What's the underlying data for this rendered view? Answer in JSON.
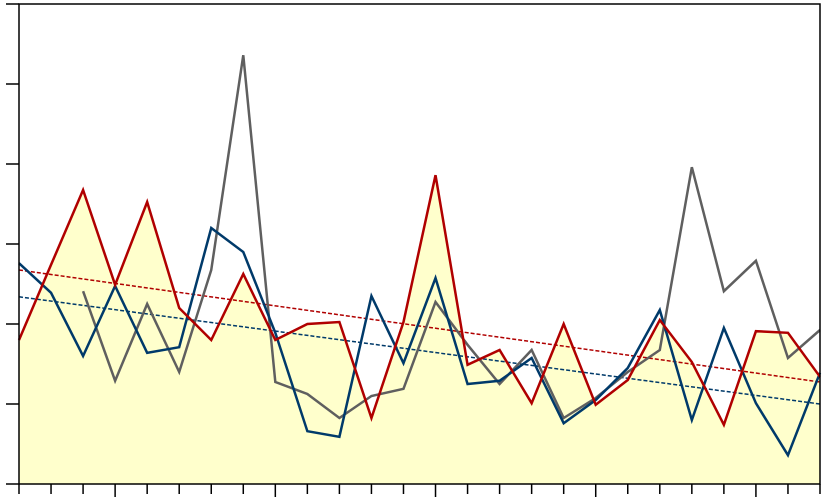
{
  "chart_data": {
    "type": "line",
    "x": [
      0,
      1,
      2,
      3,
      4,
      5,
      6,
      7,
      8,
      9,
      10,
      11,
      12,
      13,
      14,
      15,
      16,
      17,
      18,
      19,
      20,
      21,
      22,
      23,
      24,
      25
    ],
    "xlim": [
      0,
      25
    ],
    "xticks": [
      0,
      1,
      2,
      3,
      4,
      5,
      6,
      7,
      8,
      9,
      10,
      11,
      12,
      13,
      14,
      15,
      16,
      17,
      18,
      19,
      20,
      21,
      22,
      23,
      24,
      25
    ],
    "ylim": [
      0,
      6
    ],
    "yticks": [
      0,
      1,
      2,
      3,
      4,
      5,
      6
    ],
    "area_color": "#ffffcc",
    "series": [
      {
        "color": "#b00000",
        "fill": true,
        "values": [
          1.8,
          2.74,
          3.675,
          2.49,
          3.525,
          2.2,
          1.8,
          2.625,
          1.8,
          2.0,
          2.025,
          0.825,
          2.025,
          3.86,
          1.49,
          1.675,
          1.01,
          2.0,
          0.99,
          1.3,
          2.05,
          1.525,
          0.74,
          1.91,
          1.89,
          1.34
        ]
      },
      {
        "color": "#003a6a",
        "values": [
          2.76,
          2.39,
          1.6,
          2.475,
          1.64,
          1.71,
          3.2,
          2.9,
          1.89,
          0.66,
          0.59,
          2.35,
          1.51,
          2.575,
          1.25,
          1.29,
          1.575,
          0.76,
          1.05,
          1.45,
          2.175,
          0.8,
          1.95,
          1.01,
          0.36,
          1.39
        ]
      },
      {
        "color": "#5f5f5f",
        "values": [
          null,
          null,
          2.41,
          1.29,
          2.25,
          1.4,
          2.675,
          5.36,
          1.275,
          1.125,
          0.825,
          1.1,
          1.19,
          2.275,
          1.74,
          1.25,
          1.675,
          0.825,
          1.075,
          1.4,
          1.675,
          3.96,
          2.41,
          2.79,
          1.575,
          1.925
        ]
      }
    ],
    "trend_lines": [
      {
        "color": "#b00000",
        "x": [
          0,
          25
        ],
        "values": [
          2.675,
          1.275
        ]
      },
      {
        "color": "#003a6a",
        "x": [
          0,
          25
        ],
        "values": [
          2.34,
          1.0
        ]
      }
    ]
  }
}
